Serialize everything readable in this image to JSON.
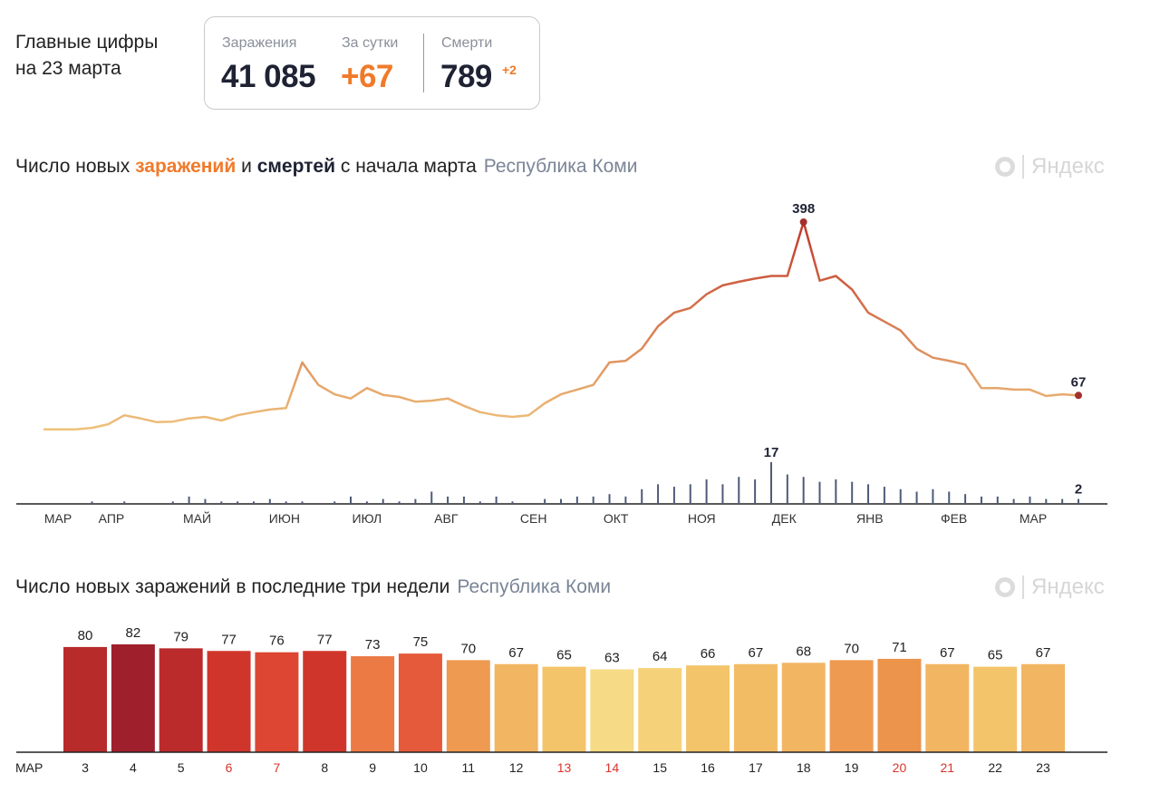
{
  "header": {
    "title": "Главные цифры",
    "date": "на 23 марта",
    "stats": [
      {
        "label": "Заражения",
        "value": "41 085"
      },
      {
        "label": "За сутки",
        "value": "+67"
      },
      {
        "label": "Смерти",
        "value": "789",
        "delta": "+2"
      }
    ]
  },
  "chart_data": [
    {
      "type": "line",
      "title_parts": [
        "Число новых",
        "и",
        "с начала марта"
      ],
      "subtitle": "Республика Коми",
      "brand": "Яндекс",
      "xlim": [
        0,
        64
      ],
      "xticks": [
        {
          "value": 0.9,
          "label": "МАР"
        },
        {
          "value": 4.2,
          "label": "АПР"
        },
        {
          "value": 9.5,
          "label": "МАЙ"
        },
        {
          "value": 14.9,
          "label": "ИЮН"
        },
        {
          "value": 20,
          "label": "ИЮЛ"
        },
        {
          "value": 24.9,
          "label": "АВГ"
        },
        {
          "value": 30.3,
          "label": "СЕН"
        },
        {
          "value": 35.4,
          "label": "ОКТ"
        },
        {
          "value": 40.7,
          "label": "НОЯ"
        },
        {
          "value": 45.8,
          "label": "ДЕК"
        },
        {
          "value": 51.1,
          "label": "ЯНВ"
        },
        {
          "value": 56.3,
          "label": "ФЕВ"
        },
        {
          "value": 61.2,
          "label": "МАР"
        }
      ],
      "ylim": [
        0,
        398
      ],
      "y2lim": [
        0,
        17
      ],
      "series": [
        {
          "name": "заражений",
          "colors": [
            "#efc27c",
            "#c0392b"
          ],
          "labeled_points": [
            47,
            64
          ],
          "values": [
            2,
            2,
            2,
            5,
            12,
            29,
            23,
            16,
            17,
            23,
            26,
            19,
            29,
            35,
            40,
            43,
            130,
            87,
            69,
            61,
            81,
            68,
            64,
            55,
            57,
            61,
            47,
            35,
            29,
            26,
            29,
            52,
            69,
            78,
            87,
            130,
            133,
            156,
            199,
            225,
            234,
            260,
            277,
            284,
            290,
            295,
            295,
            398,
            286,
            295,
            269,
            225,
            208,
            191,
            156,
            139,
            133,
            126,
            81,
            81,
            78,
            78,
            66,
            69,
            67
          ]
        },
        {
          "name": "смертей",
          "axis": "y2",
          "color": "#4f5a78",
          "labeled_points": [
            45,
            64
          ],
          "values": [
            0,
            0,
            0,
            1,
            0,
            1,
            0,
            0,
            1,
            3,
            2,
            1,
            1,
            1,
            2,
            1,
            1,
            0,
            1,
            3,
            1,
            2,
            1,
            2,
            5,
            3,
            3,
            1,
            3,
            1,
            0,
            2,
            2,
            3,
            3,
            4,
            3,
            6,
            8,
            7,
            8,
            10,
            8,
            11,
            10,
            17,
            12,
            11,
            9,
            10,
            9,
            8,
            7,
            6,
            5,
            6,
            5,
            4,
            3,
            3,
            2,
            3,
            2,
            2,
            2
          ]
        }
      ]
    },
    {
      "type": "bar",
      "title": "Число новых заражений в последние три недели",
      "subtitle": "Республика Коми",
      "brand": "Яндекс",
      "month": "МАР",
      "categories": [
        "3",
        "4",
        "5",
        "6",
        "7",
        "8",
        "9",
        "10",
        "11",
        "12",
        "13",
        "14",
        "15",
        "16",
        "17",
        "18",
        "19",
        "20",
        "21",
        "22",
        "23"
      ],
      "values": [
        80,
        82,
        79,
        77,
        76,
        77,
        73,
        75,
        70,
        67,
        65,
        63,
        64,
        66,
        67,
        68,
        70,
        71,
        67,
        65,
        67
      ],
      "colors": [
        "#b72b2b",
        "#a01f2c",
        "#bb2b2b",
        "#d0352b",
        "#dc4632",
        "#d0352b",
        "#ec7a45",
        "#e55a3a",
        "#ee9a50",
        "#f2b562",
        "#f4c46a",
        "#f6da85",
        "#f5d27a",
        "#f4c46a",
        "#f2bc64",
        "#f2b562",
        "#ee9a50",
        "#ec934c",
        "#f2b562",
        "#f4c46a",
        "#f2b562"
      ],
      "label_colors": [
        "#222",
        "#222",
        "#222",
        "#d9352b",
        "#d9352b",
        "#222",
        "#222",
        "#222",
        "#222",
        "#222",
        "#d9352b",
        "#d9352b",
        "#222",
        "#222",
        "#222",
        "#222",
        "#222",
        "#d9352b",
        "#d9352b",
        "#222",
        "#222"
      ],
      "ylim": [
        0,
        82
      ]
    }
  ]
}
